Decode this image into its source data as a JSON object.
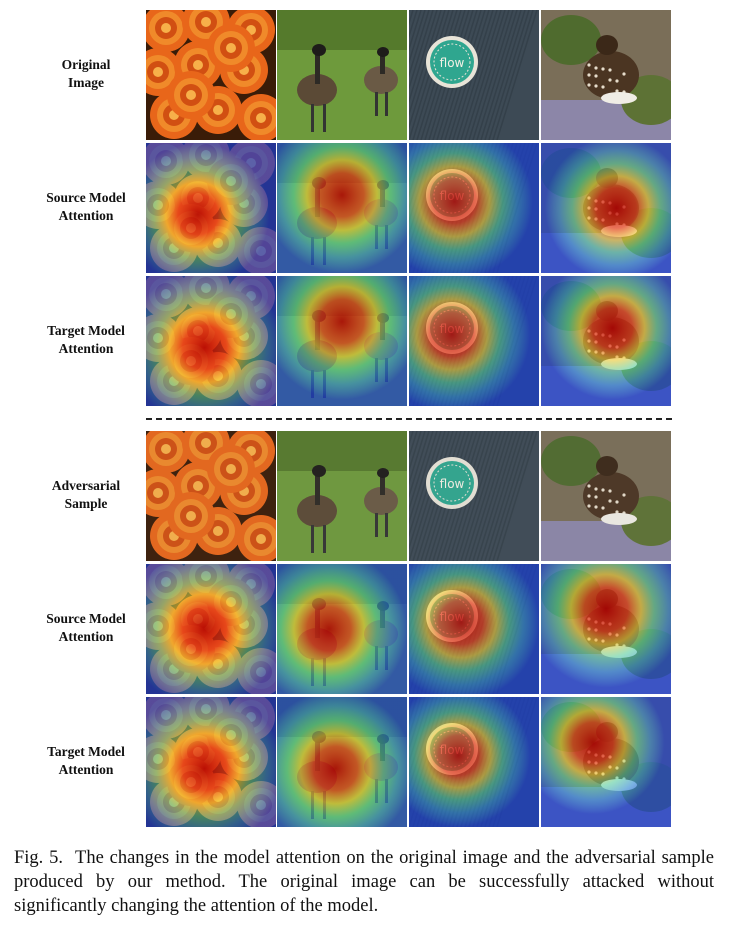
{
  "figure": {
    "row_labels": [
      "Original\nImage",
      "Source Model\nAttention",
      "Target Model\nAttention",
      "Adversarial\nSample",
      "Source Model\nAttention",
      "Target Model\nAttention"
    ],
    "columns": [
      "roses",
      "geese",
      "flow-badge",
      "bird"
    ],
    "badge_text": "flow",
    "caption_lead": "Fig. 5.",
    "caption_text": "The changes in the model attention on the original image and the adversarial sample produced by our method. The original image can be successfully attacked without significantly changing the attention of the model."
  }
}
